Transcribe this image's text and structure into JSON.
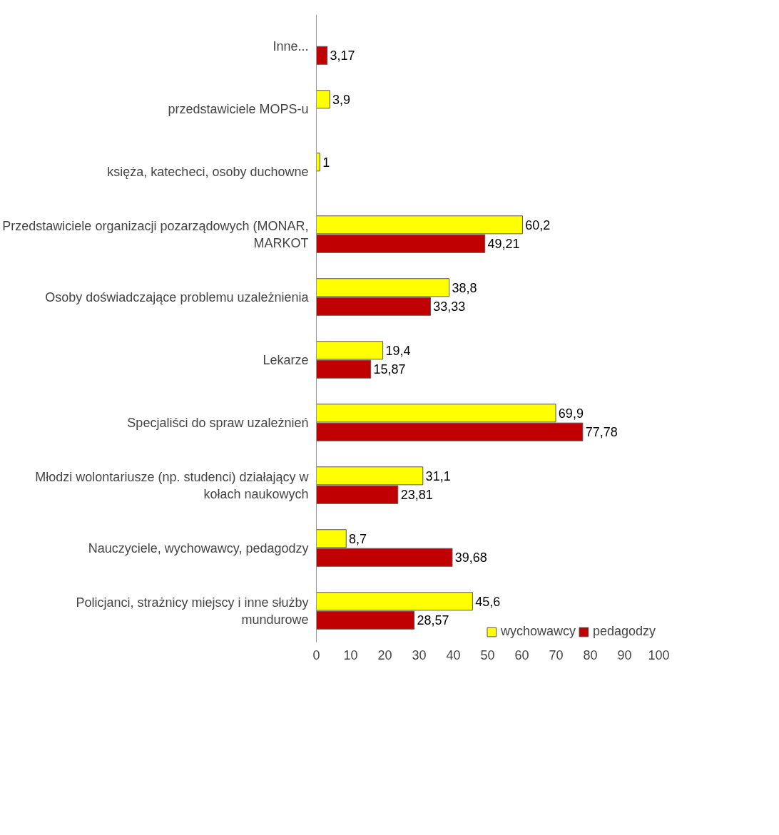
{
  "chart_data": {
    "type": "bar",
    "orientation": "horizontal",
    "categories": [
      "Inne...",
      "przedstawiciele MOPS-u",
      "księża, katecheci, osoby duchowne",
      "Przedstawiciele organizacji pozarządowych (MONAR, MARKOT",
      "Osoby doświadczające problemu uzależnienia",
      "Lekarze",
      "Specjaliści do spraw uzależnień",
      "Młodzi wolontariusze (np. studenci) działający w kołach naukowych",
      "Nauczyciele, wychowawcy, pedagodzy",
      "Policjanci, strażnicy miejscy i inne służby mundurowe"
    ],
    "series": [
      {
        "name": "wychowawcy",
        "color": "#ffff00",
        "values": [
          null,
          3.9,
          1,
          60.2,
          38.8,
          19.4,
          69.9,
          31.1,
          8.7,
          45.6
        ],
        "value_labels": [
          null,
          "3,9",
          "1",
          "60,2",
          "38,8",
          "19,4",
          "69,9",
          "31,1",
          "8,7",
          "45,6"
        ]
      },
      {
        "name": "pedagodzy",
        "color": "#c00000",
        "values": [
          3.17,
          null,
          null,
          49.21,
          33.33,
          15.87,
          77.78,
          23.81,
          39.68,
          28.57
        ],
        "value_labels": [
          "3,17",
          null,
          null,
          "49,21",
          "33,33",
          "15,87",
          "77,78",
          "23,81",
          "39,68",
          "28,57"
        ]
      }
    ],
    "xlim": [
      0,
      100
    ],
    "xticks": [
      0,
      10,
      20,
      30,
      40,
      50,
      60,
      70,
      80,
      90,
      100
    ],
    "grid": false,
    "legend": "bottom"
  }
}
